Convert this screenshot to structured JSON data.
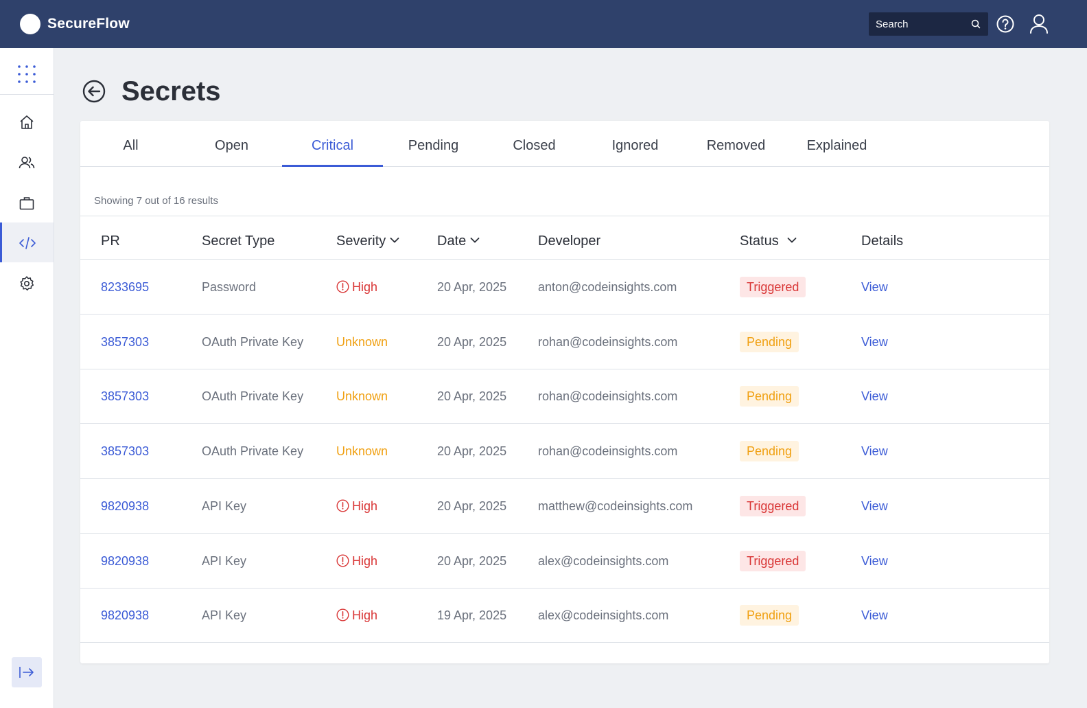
{
  "header": {
    "app_title": "SecureFlow",
    "search_placeholder": "Search"
  },
  "page": {
    "title": "Secrets"
  },
  "tabs": [
    {
      "label": "All"
    },
    {
      "label": "Open"
    },
    {
      "label": "Critical"
    },
    {
      "label": "Pending"
    },
    {
      "label": "Closed"
    },
    {
      "label": "Ignored"
    },
    {
      "label": "Removed"
    },
    {
      "label": "Explained"
    }
  ],
  "active_tab": "Critical",
  "results_text": "Showing 7 out of 16 results",
  "columns": {
    "pr": "PR",
    "secret_type": "Secret Type",
    "severity": "Severity",
    "date": "Date",
    "developer": "Developer",
    "status": "Status",
    "details": "Details"
  },
  "rows": [
    {
      "pr": "8233695",
      "type": "Password",
      "severity": "High",
      "date": "20 Apr, 2025",
      "developer": "anton@codeinsights.com",
      "status": "Triggered",
      "details": "View"
    },
    {
      "pr": "3857303",
      "type": "OAuth Private Key",
      "severity": "Unknown",
      "date": "20 Apr, 2025",
      "developer": "rohan@codeinsights.com",
      "status": "Pending",
      "details": "View"
    },
    {
      "pr": "3857303",
      "type": "OAuth Private Key",
      "severity": "Unknown",
      "date": "20 Apr, 2025",
      "developer": "rohan@codeinsights.com",
      "status": "Pending",
      "details": "View"
    },
    {
      "pr": "3857303",
      "type": "OAuth Private Key",
      "severity": "Unknown",
      "date": "20 Apr, 2025",
      "developer": "rohan@codeinsights.com",
      "status": "Pending",
      "details": "View"
    },
    {
      "pr": "9820938",
      "type": "API Key",
      "severity": "High",
      "date": "20 Apr, 2025",
      "developer": "matthew@codeinsights.com",
      "status": "Triggered",
      "details": "View"
    },
    {
      "pr": "9820938",
      "type": "API Key",
      "severity": "High",
      "date": "20 Apr, 2025",
      "developer": "alex@codeinsights.com",
      "status": "Triggered",
      "details": "View"
    },
    {
      "pr": "9820938",
      "type": "API Key",
      "severity": "High",
      "date": "19 Apr, 2025",
      "developer": "alex@codeinsights.com",
      "status": "Pending",
      "details": "View"
    }
  ],
  "colors": {
    "topbar": "#2f416b",
    "accent": "#3b5bd6",
    "high": "#d93636",
    "unknown": "#f0a012",
    "triggered_bg": "#fde6e6",
    "pending_bg": "#fff3e0"
  },
  "icons": {
    "sidebar": [
      "apps-grid-icon",
      "home-icon",
      "users-icon",
      "briefcase-icon",
      "code-icon",
      "settings-gear-icon",
      "collapse-sidebar-icon"
    ],
    "header": [
      "search-icon",
      "help-icon",
      "user-icon"
    ],
    "page": [
      "back-arrow-icon"
    ]
  }
}
